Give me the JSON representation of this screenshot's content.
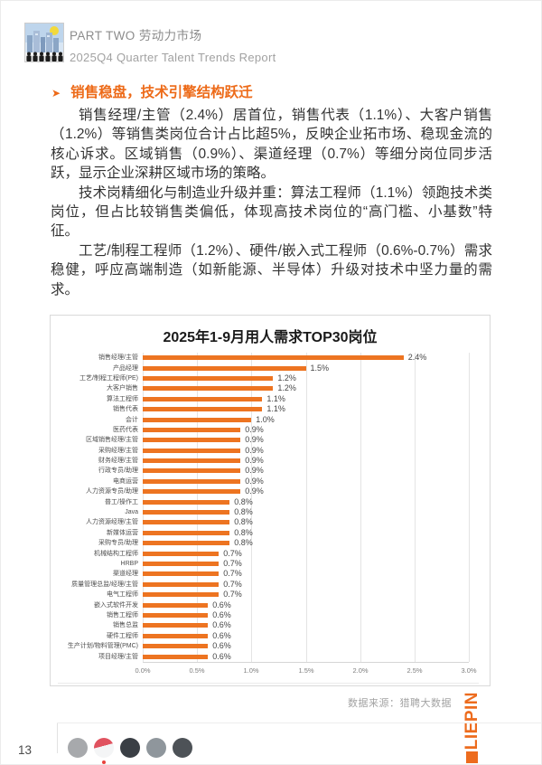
{
  "header": {
    "part_title": "PART TWO 劳动力市场",
    "subtitle": "2025Q4 Quarter Talent Trends Report"
  },
  "section": {
    "bullet_icon": "➤",
    "heading": "销售稳盘，技术引擎结构跃迁",
    "paragraphs": [
      "销售经理/主管（2.4%）居首位，销售代表（1.1%）、大客户销售（1.2%）等销售类岗位合计占比超5%，反映企业拓市场、稳现金流的核心诉求。区域销售（0.9%）、渠道经理（0.7%）等细分岗位同步活跃，显示企业深耕区域市场的策略。",
      "技术岗精细化与制造业升级并重：算法工程师（1.1%）领跑技术类岗位，但占比较销售类偏低，体现高技术岗位的“高门槛、小基数”特征。",
      "工艺/制程工程师（1.2%）、硬件/嵌入式工程师（0.6%-0.7%）需求稳健，呼应高端制造（如新能源、半导体）升级对技术中坚力量的需求。"
    ]
  },
  "chart_data": {
    "type": "bar",
    "orientation": "horizontal",
    "title": "2025年1-9月用人需求TOP30岗位",
    "unit": "%",
    "xlim": [
      0,
      3.0
    ],
    "x_ticks": [
      "0.0%",
      "0.5%",
      "1.0%",
      "1.5%",
      "2.0%",
      "2.5%",
      "3.0%"
    ],
    "grid": true,
    "legend": false,
    "bar_color": "#ed7421",
    "categories": [
      "销售经理/主管",
      "产品经理",
      "工艺/制程工程师(PE)",
      "大客户销售",
      "算法工程师",
      "销售代表",
      "会计",
      "医药代表",
      "区域销售经理/主管",
      "采购经理/主管",
      "财务经理/主管",
      "行政专员/助理",
      "电商运营",
      "人力资源专员/助理",
      "普工/操作工",
      "Java",
      "人力资源经理/主管",
      "新媒体运营",
      "采购专员/助理",
      "机械结构工程师",
      "HRBP",
      "渠道经理",
      "质量管理总监/经理/主管",
      "电气工程师",
      "嵌入式软件开发",
      "销售工程师",
      "销售总监",
      "硬件工程师",
      "生产计划/物料管理(PMC)",
      "项目经理/主管"
    ],
    "values": [
      2.4,
      1.5,
      1.2,
      1.2,
      1.1,
      1.1,
      1.0,
      0.9,
      0.9,
      0.9,
      0.9,
      0.9,
      0.9,
      0.9,
      0.8,
      0.8,
      0.8,
      0.8,
      0.8,
      0.7,
      0.7,
      0.7,
      0.7,
      0.7,
      0.6,
      0.6,
      0.6,
      0.6,
      0.6,
      0.6
    ]
  },
  "footer": {
    "data_source": "数据来源：猎聘大数据",
    "logo_text": "LIEPIN",
    "logo_color": "#ed6c1e",
    "page_number": "13",
    "social_icons": [
      {
        "name": "social-icon-1",
        "colors": [
          "#a7a9ac"
        ]
      },
      {
        "name": "social-icon-2",
        "colors": [
          "#e0525f",
          "#f4f5f6"
        ]
      },
      {
        "name": "social-icon-3",
        "colors": [
          "#3a3f45"
        ]
      },
      {
        "name": "social-icon-4",
        "colors": [
          "#8f969c"
        ]
      },
      {
        "name": "social-icon-5",
        "colors": [
          "#4d5257"
        ]
      }
    ]
  },
  "colors": {
    "accent_orange": "#ed6a18",
    "bar_orange": "#ed7421",
    "body_text": "#333333",
    "muted_gray": "#9a9a9a"
  }
}
